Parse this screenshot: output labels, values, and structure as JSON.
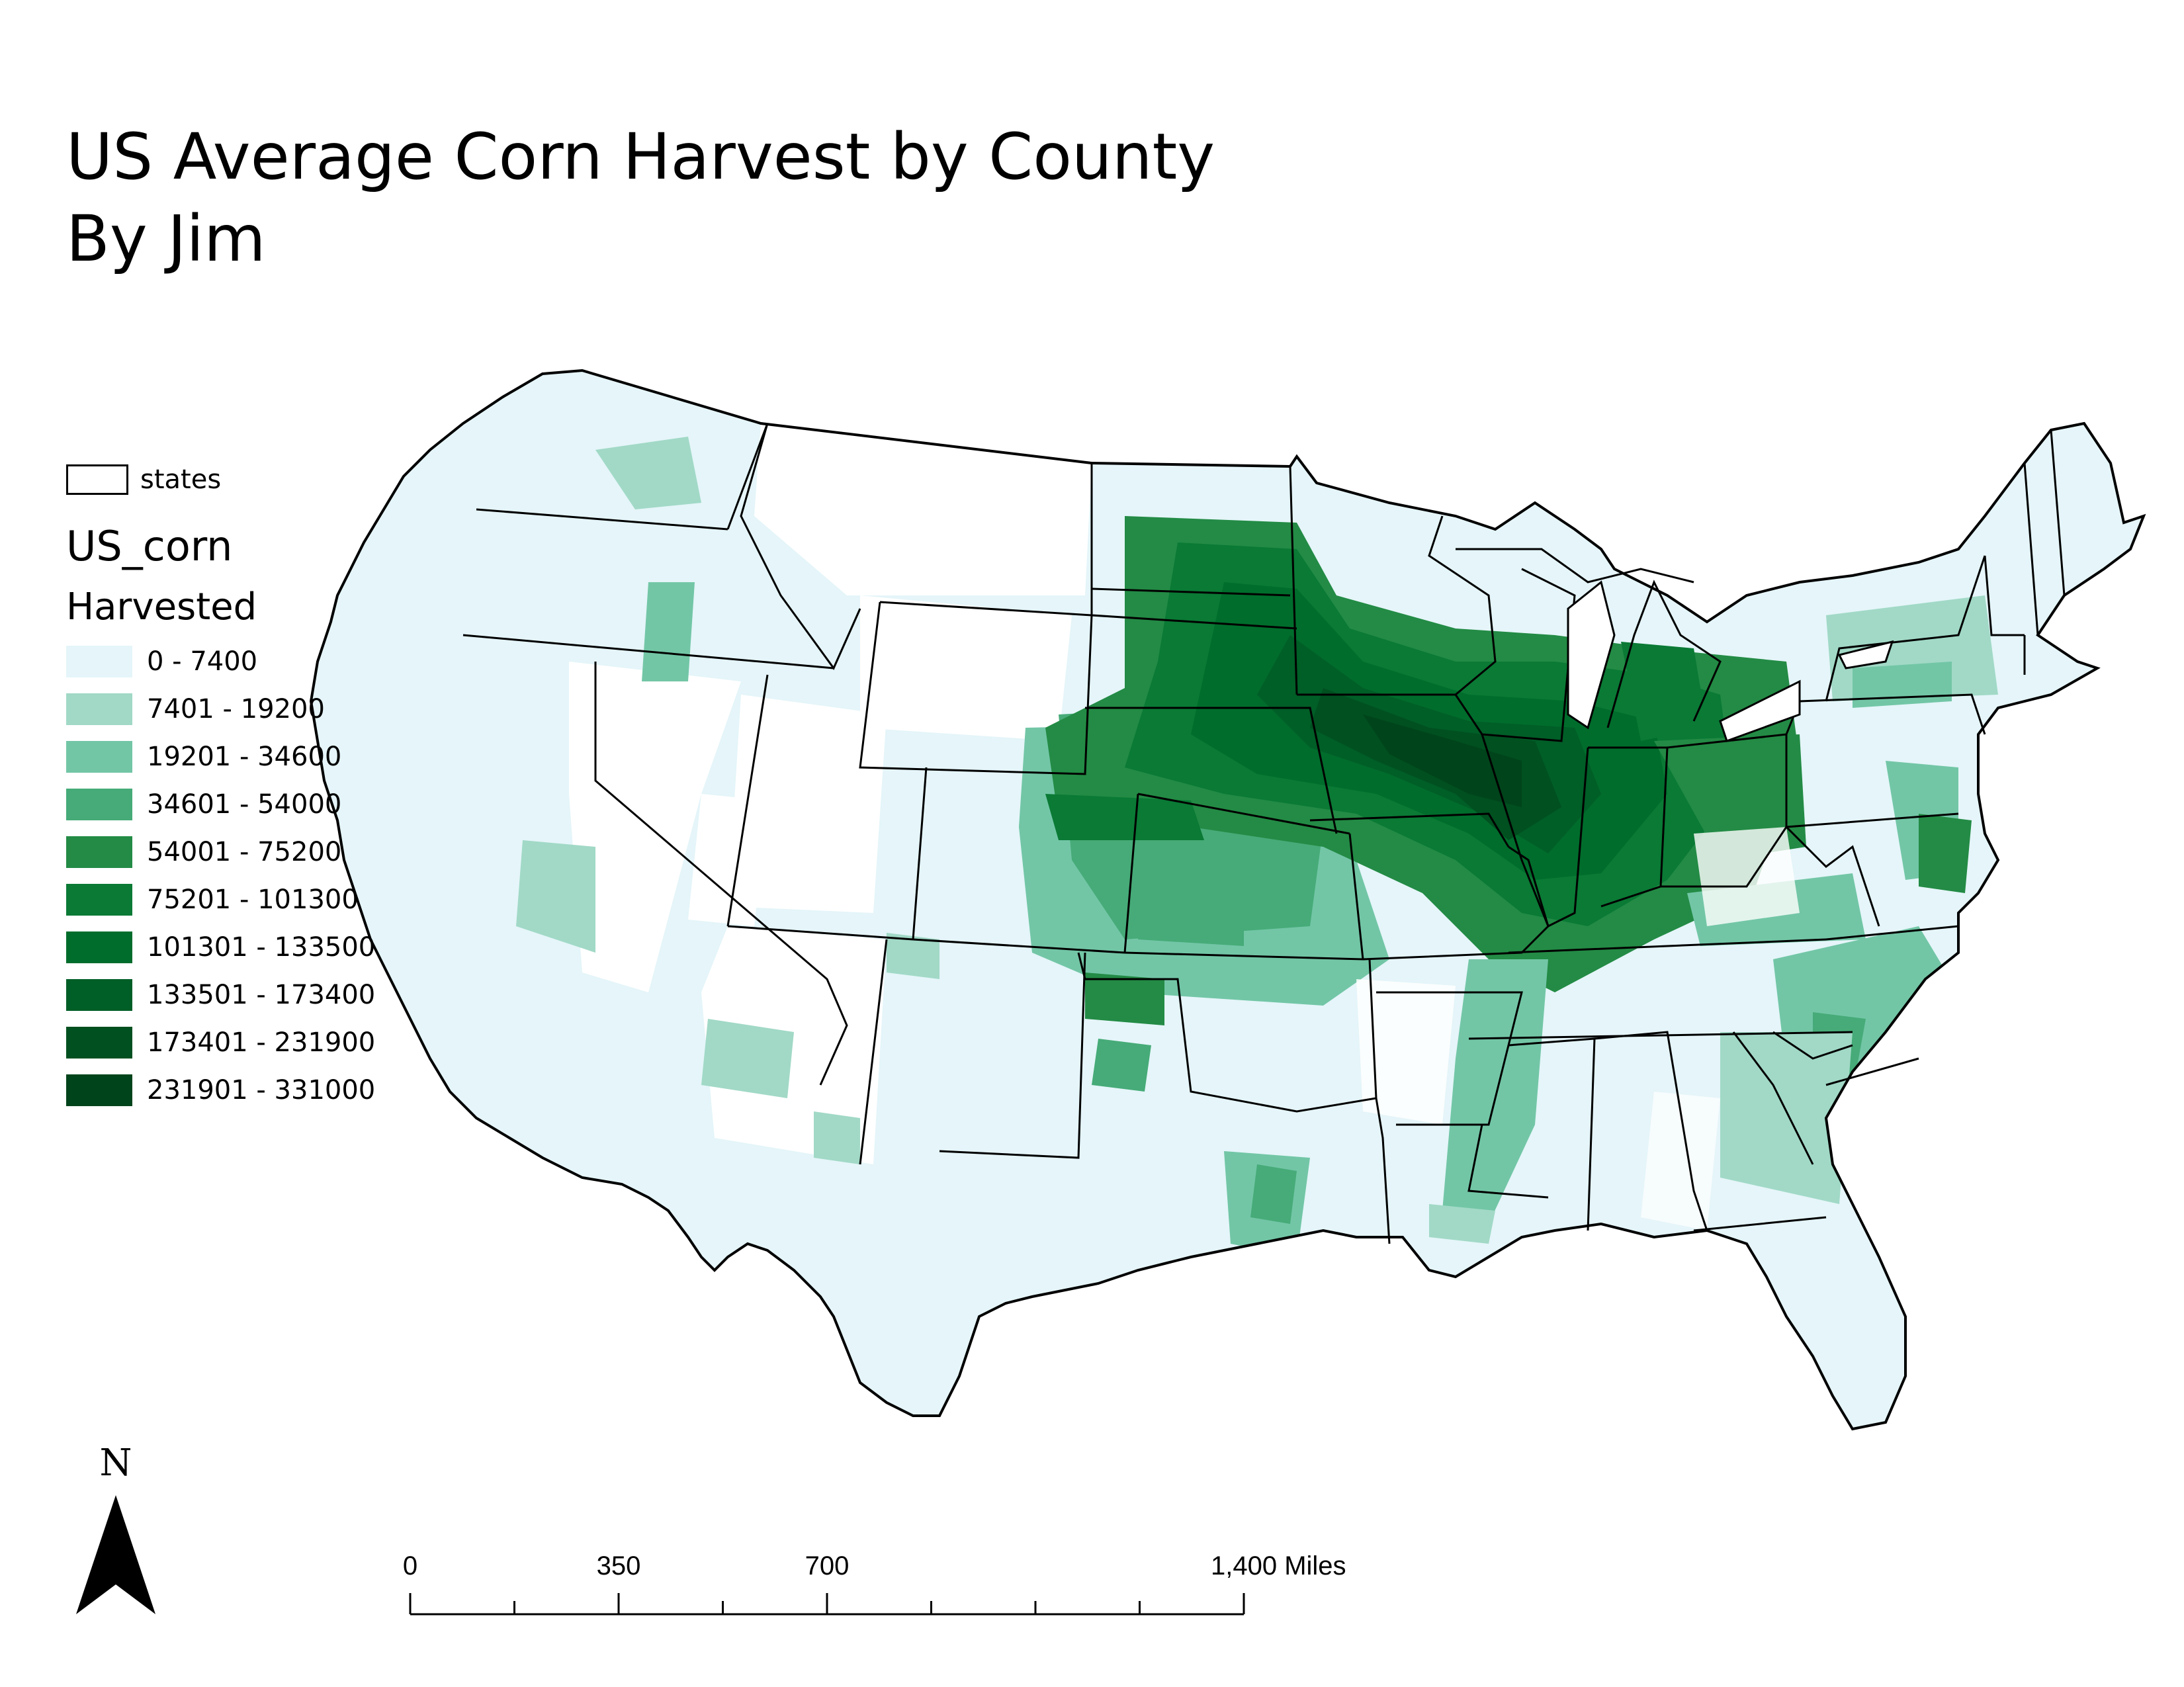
{
  "title": {
    "line1": "US Average Corn Harvest by County",
    "line2": "By Jim"
  },
  "legend": {
    "states_label": "states",
    "layer_name": "US_corn",
    "field_name": "Harvested",
    "classes": [
      {
        "label": "0 - 7400",
        "color": "#e5f5f9"
      },
      {
        "label": "7401 - 19200",
        "color": "#a1d9c6"
      },
      {
        "label": "19201 - 34600",
        "color": "#72c6a6"
      },
      {
        "label": "34601 - 54000",
        "color": "#46ab78"
      },
      {
        "label": "54001 - 75200",
        "color": "#238b45"
      },
      {
        "label": "75201 - 101300",
        "color": "#0a7a35"
      },
      {
        "label": "101301 - 133500",
        "color": "#006d2c"
      },
      {
        "label": "133501 - 173400",
        "color": "#005e27"
      },
      {
        "label": "173401 - 231900",
        "color": "#005020"
      },
      {
        "label": "231901 - 331000",
        "color": "#00441b"
      }
    ]
  },
  "north_arrow": {
    "label": "N"
  },
  "scale_bar": {
    "labels": [
      "0",
      "350",
      "700",
      "1,400 Miles"
    ],
    "values": [
      0,
      350,
      700,
      1400
    ]
  }
}
